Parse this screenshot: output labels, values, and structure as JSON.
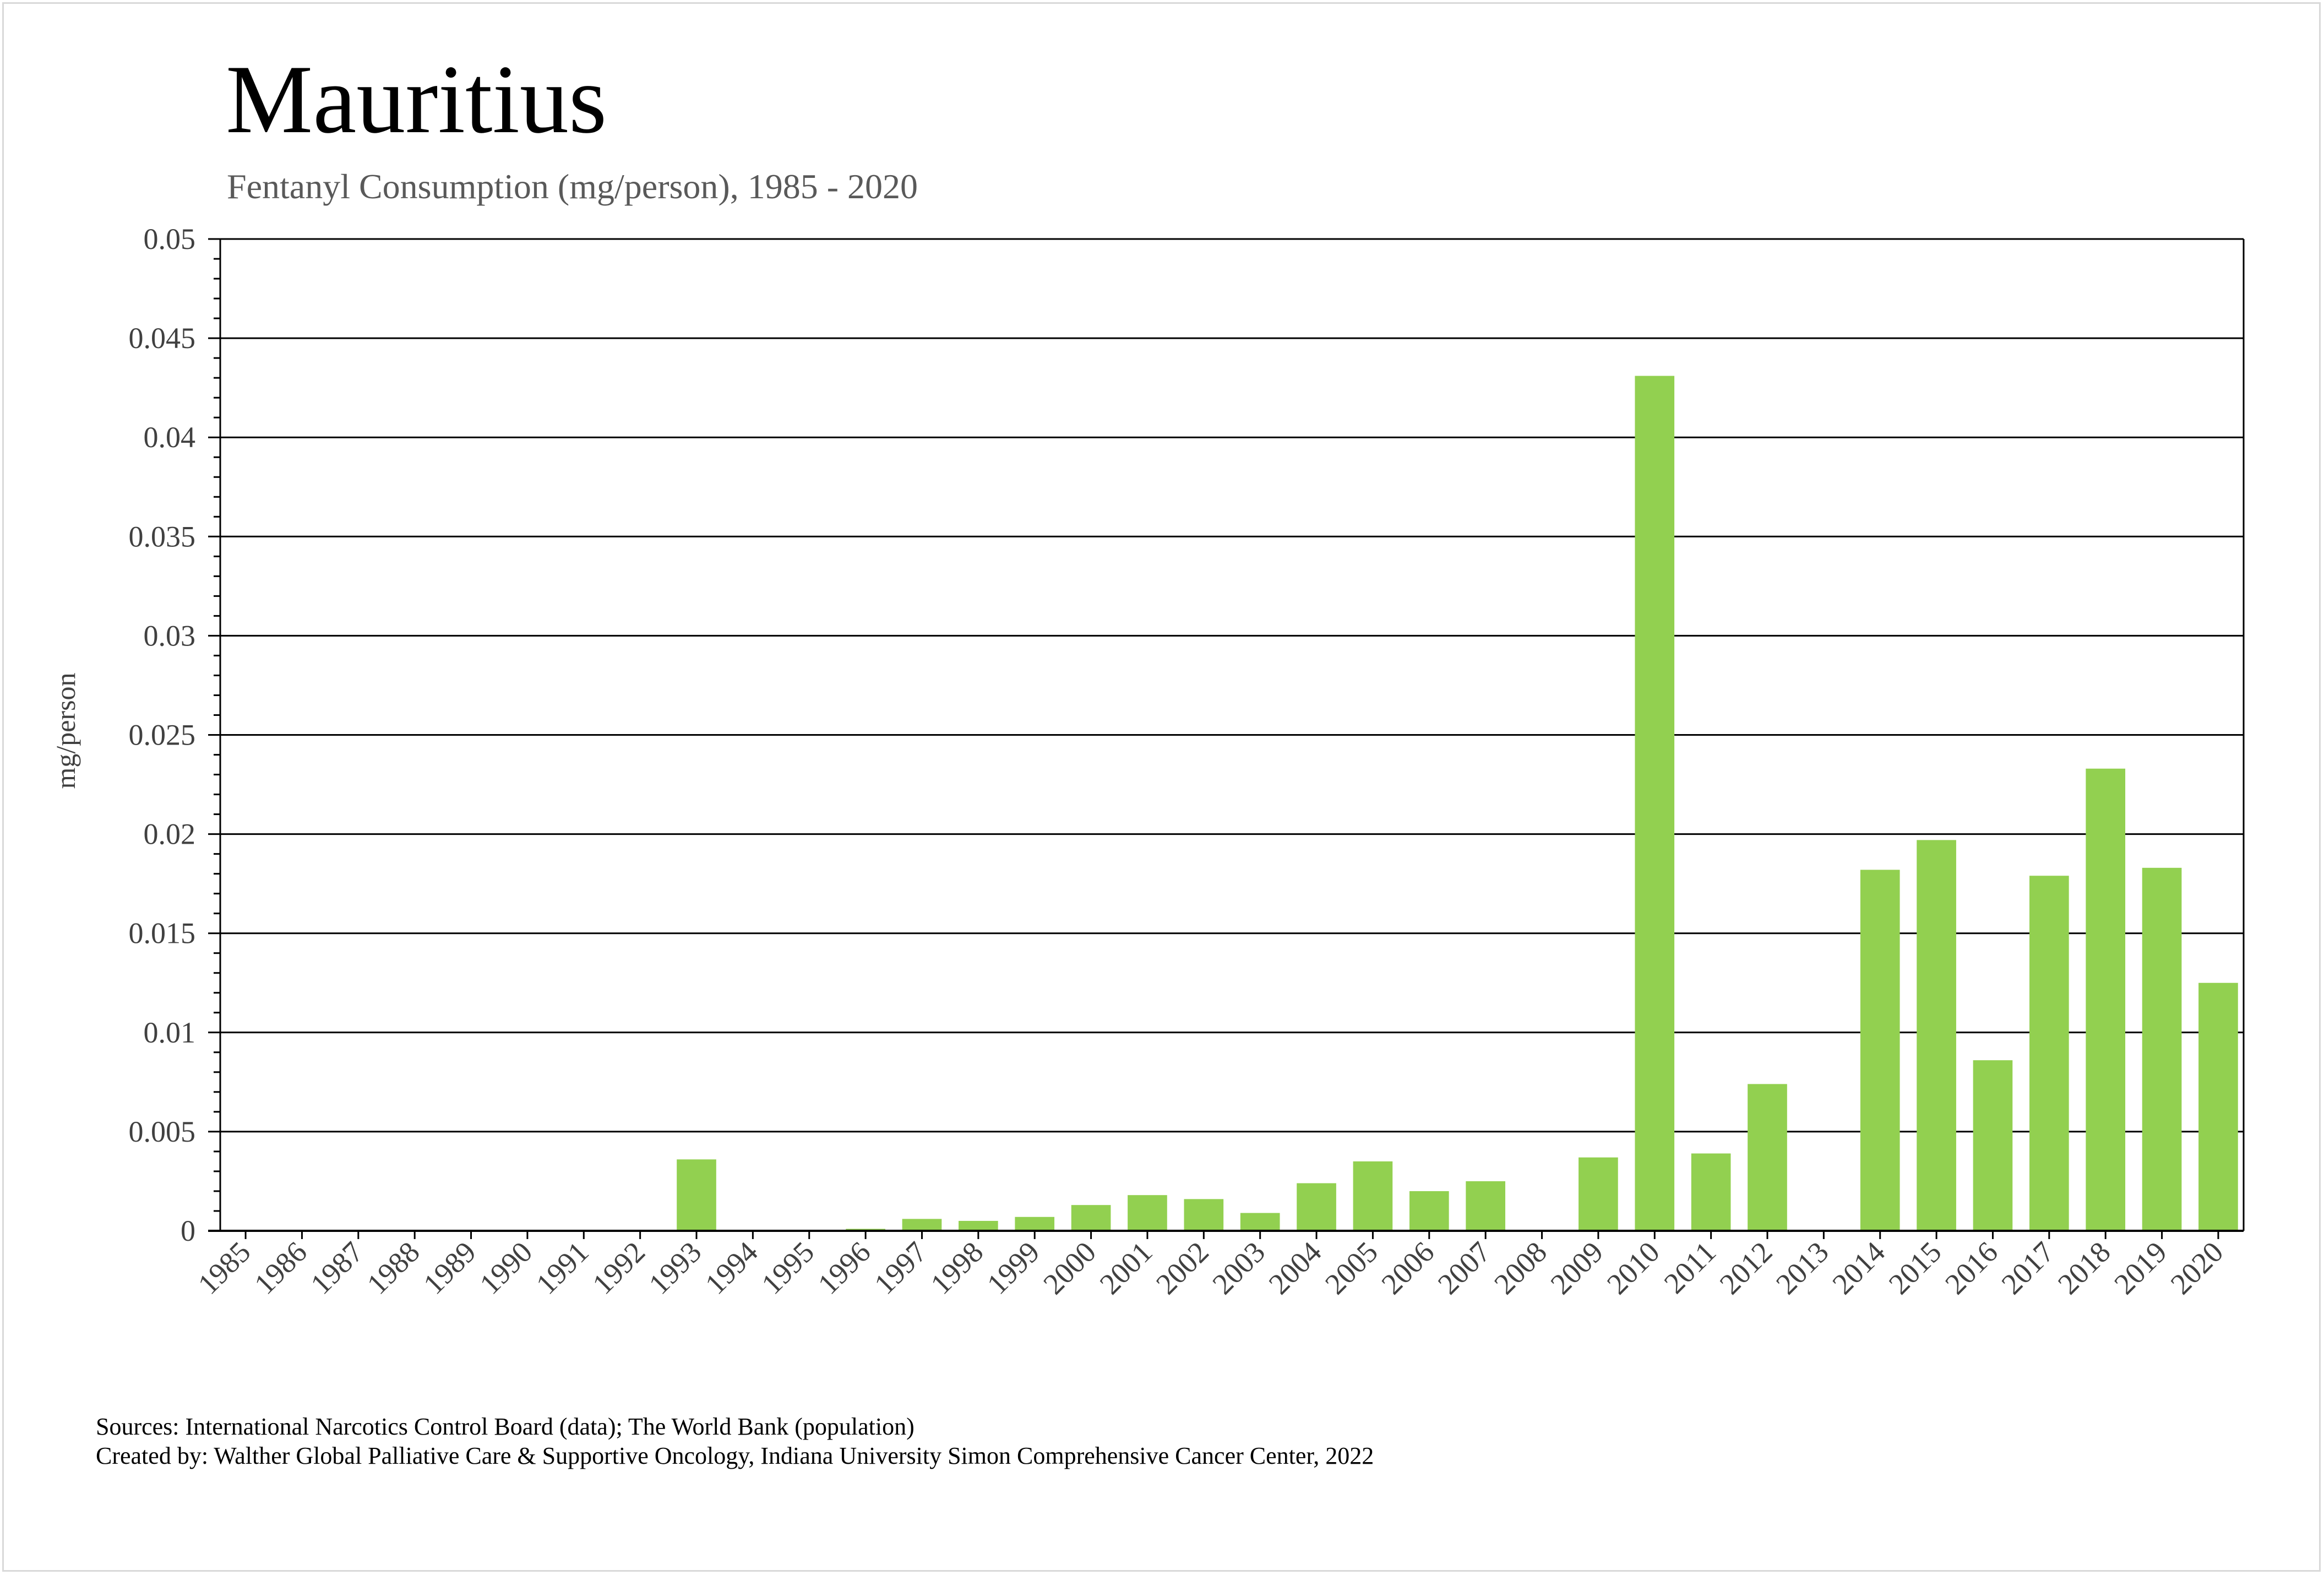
{
  "chart_data": {
    "type": "bar",
    "title": "Mauritius",
    "subtitle": "Fentanyl Consumption (mg/person), 1985 - 2020",
    "ylabel": "mg/person",
    "xlabel": "",
    "ylim": [
      0,
      0.05
    ],
    "yticks": [
      "0",
      "0.005",
      "0.01",
      "0.015",
      "0.02",
      "0.025",
      "0.03",
      "0.035",
      "0.04",
      "0.045",
      "0.05"
    ],
    "ytick_values": [
      0,
      0.005,
      0.01,
      0.015,
      0.02,
      0.025,
      0.03,
      0.035,
      0.04,
      0.045,
      0.05
    ],
    "grid": true,
    "bar_color": "#92d050",
    "categories": [
      "1985",
      "1986",
      "1987",
      "1988",
      "1989",
      "1990",
      "1991",
      "1992",
      "1993",
      "1994",
      "1995",
      "1996",
      "1997",
      "1998",
      "1999",
      "2000",
      "2001",
      "2002",
      "2003",
      "2004",
      "2005",
      "2006",
      "2007",
      "2008",
      "2009",
      "2010",
      "2011",
      "2012",
      "2013",
      "2014",
      "2015",
      "2016",
      "2017",
      "2018",
      "2019",
      "2020"
    ],
    "values": [
      0,
      0,
      0,
      0,
      0,
      0,
      0,
      0,
      0.0036,
      0,
      0,
      0.0001,
      0.0006,
      0.0005,
      0.0007,
      0.0013,
      0.0018,
      0.0016,
      0.0009,
      0.0024,
      0.0035,
      0.002,
      0.0025,
      0,
      0.0037,
      0.0431,
      0.0039,
      0.0074,
      0,
      0.0182,
      0.0197,
      0.0086,
      0.0179,
      0.0233,
      0.0183,
      0.0125
    ]
  },
  "footer": {
    "sources": "Sources: International Narcotics Control Board (data); The World Bank (population)",
    "created_by": "Created by: Walther Global Palliative Care & Supportive Oncology, Indiana University Simon Comprehensive Cancer Center, 2022"
  }
}
